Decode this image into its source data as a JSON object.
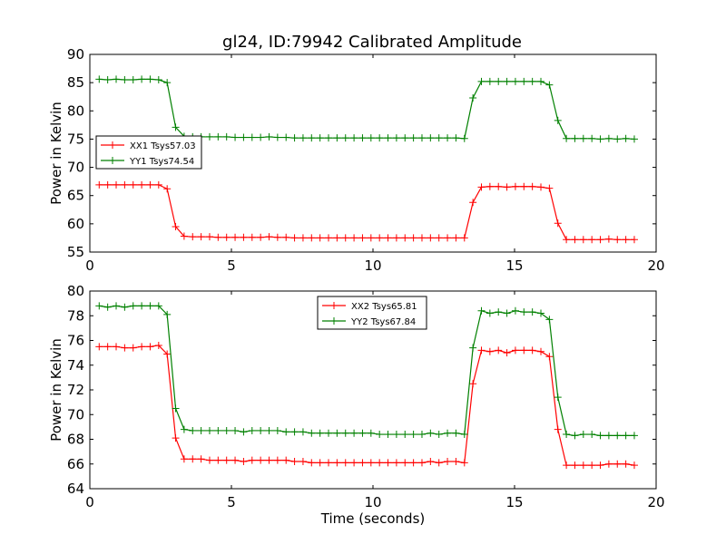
{
  "chart_data": [
    {
      "type": "line",
      "title": "gl24, ID:79942 Calibrated Amplitude",
      "xlabel": "",
      "ylabel": "Power in Kelvin",
      "xlim": [
        0,
        20
      ],
      "ylim": [
        55,
        90
      ],
      "xticks": [
        "0",
        "5",
        "10",
        "15",
        "20"
      ],
      "yticks": [
        "55",
        "60",
        "65",
        "70",
        "75",
        "80",
        "85",
        "90"
      ],
      "legend_position": "center-left",
      "x": [
        0.33,
        0.63,
        0.93,
        1.23,
        1.53,
        1.83,
        2.13,
        2.43,
        2.73,
        3.03,
        3.33,
        3.63,
        3.93,
        4.23,
        4.53,
        4.83,
        5.13,
        5.43,
        5.73,
        6.03,
        6.33,
        6.63,
        6.93,
        7.23,
        7.53,
        7.83,
        8.13,
        8.43,
        8.73,
        9.03,
        9.33,
        9.63,
        9.93,
        10.23,
        10.53,
        10.83,
        11.13,
        11.43,
        11.73,
        12.03,
        12.33,
        12.63,
        12.93,
        13.23,
        13.53,
        13.83,
        14.13,
        14.43,
        14.73,
        15.03,
        15.33,
        15.63,
        15.93,
        16.23,
        16.53,
        16.83,
        17.13,
        17.43,
        17.73,
        18.03,
        18.33,
        18.63,
        18.93,
        19.23
      ],
      "series": [
        {
          "name": "XX1 Tsys57.03",
          "color": "#ff0000",
          "values": [
            66.9,
            66.9,
            66.9,
            66.9,
            66.9,
            66.9,
            66.9,
            66.9,
            66.2,
            59.5,
            57.8,
            57.7,
            57.7,
            57.7,
            57.6,
            57.6,
            57.6,
            57.6,
            57.6,
            57.6,
            57.7,
            57.6,
            57.6,
            57.5,
            57.5,
            57.5,
            57.5,
            57.5,
            57.5,
            57.5,
            57.5,
            57.5,
            57.5,
            57.5,
            57.5,
            57.5,
            57.5,
            57.5,
            57.5,
            57.5,
            57.5,
            57.5,
            57.5,
            57.5,
            63.8,
            66.5,
            66.6,
            66.6,
            66.5,
            66.6,
            66.6,
            66.6,
            66.5,
            66.3,
            60.1,
            57.2,
            57.2,
            57.2,
            57.2,
            57.2,
            57.3,
            57.2,
            57.2,
            57.2
          ]
        },
        {
          "name": "YY1 Tsys74.54",
          "color": "#008000",
          "values": [
            85.6,
            85.5,
            85.6,
            85.5,
            85.5,
            85.6,
            85.6,
            85.5,
            85.0,
            77.1,
            75.5,
            75.4,
            75.4,
            75.4,
            75.4,
            75.4,
            75.3,
            75.3,
            75.3,
            75.3,
            75.4,
            75.3,
            75.3,
            75.2,
            75.2,
            75.2,
            75.2,
            75.2,
            75.2,
            75.2,
            75.2,
            75.2,
            75.2,
            75.2,
            75.2,
            75.2,
            75.2,
            75.2,
            75.2,
            75.2,
            75.2,
            75.2,
            75.2,
            75.1,
            82.3,
            85.2,
            85.2,
            85.2,
            85.2,
            85.2,
            85.2,
            85.2,
            85.2,
            84.6,
            78.3,
            75.1,
            75.1,
            75.1,
            75.1,
            75.0,
            75.1,
            75.0,
            75.1,
            75.0
          ]
        }
      ]
    },
    {
      "type": "line",
      "title": "",
      "xlabel": "Time (seconds)",
      "ylabel": "Power in Kelvin",
      "xlim": [
        0,
        20
      ],
      "ylim": [
        64,
        80
      ],
      "xticks": [
        "0",
        "5",
        "10",
        "15",
        "20"
      ],
      "yticks": [
        "64",
        "66",
        "68",
        "70",
        "72",
        "74",
        "76",
        "78",
        "80"
      ],
      "legend_position": "upper-center",
      "x": [
        0.33,
        0.63,
        0.93,
        1.23,
        1.53,
        1.83,
        2.13,
        2.43,
        2.73,
        3.03,
        3.33,
        3.63,
        3.93,
        4.23,
        4.53,
        4.83,
        5.13,
        5.43,
        5.73,
        6.03,
        6.33,
        6.63,
        6.93,
        7.23,
        7.53,
        7.83,
        8.13,
        8.43,
        8.73,
        9.03,
        9.33,
        9.63,
        9.93,
        10.23,
        10.53,
        10.83,
        11.13,
        11.43,
        11.73,
        12.03,
        12.33,
        12.63,
        12.93,
        13.23,
        13.53,
        13.83,
        14.13,
        14.43,
        14.73,
        15.03,
        15.33,
        15.63,
        15.93,
        16.23,
        16.53,
        16.83,
        17.13,
        17.43,
        17.73,
        18.03,
        18.33,
        18.63,
        18.93,
        19.23
      ],
      "series": [
        {
          "name": "XX2 Tsys65.81",
          "color": "#ff0000",
          "values": [
            75.5,
            75.5,
            75.5,
            75.4,
            75.4,
            75.5,
            75.5,
            75.6,
            74.9,
            68.1,
            66.4,
            66.4,
            66.4,
            66.3,
            66.3,
            66.3,
            66.3,
            66.2,
            66.3,
            66.3,
            66.3,
            66.3,
            66.3,
            66.2,
            66.2,
            66.1,
            66.1,
            66.1,
            66.1,
            66.1,
            66.1,
            66.1,
            66.1,
            66.1,
            66.1,
            66.1,
            66.1,
            66.1,
            66.1,
            66.2,
            66.1,
            66.2,
            66.2,
            66.1,
            72.5,
            75.2,
            75.1,
            75.2,
            75.0,
            75.2,
            75.2,
            75.2,
            75.1,
            74.7,
            68.8,
            65.9,
            65.9,
            65.9,
            65.9,
            65.9,
            66.0,
            66.0,
            66.0,
            65.9
          ]
        },
        {
          "name": "YY2 Tsys67.84",
          "color": "#008000",
          "values": [
            78.8,
            78.7,
            78.8,
            78.7,
            78.8,
            78.8,
            78.8,
            78.8,
            78.1,
            70.5,
            68.8,
            68.7,
            68.7,
            68.7,
            68.7,
            68.7,
            68.7,
            68.6,
            68.7,
            68.7,
            68.7,
            68.7,
            68.6,
            68.6,
            68.6,
            68.5,
            68.5,
            68.5,
            68.5,
            68.5,
            68.5,
            68.5,
            68.5,
            68.4,
            68.4,
            68.4,
            68.4,
            68.4,
            68.4,
            68.5,
            68.4,
            68.5,
            68.5,
            68.4,
            75.4,
            78.4,
            78.2,
            78.3,
            78.2,
            78.4,
            78.3,
            78.3,
            78.2,
            77.7,
            71.4,
            68.4,
            68.3,
            68.4,
            68.4,
            68.3,
            68.3,
            68.3,
            68.3,
            68.3
          ]
        }
      ]
    }
  ]
}
